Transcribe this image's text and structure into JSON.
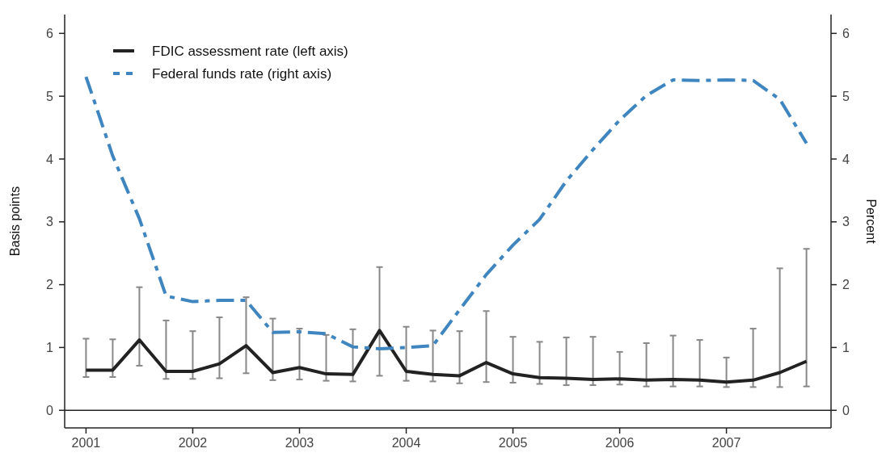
{
  "chart_data": {
    "type": "line",
    "ylabel": "Basis points",
    "y2label": "Percent",
    "x": [
      2001,
      2001.25,
      2001.5,
      2001.75,
      2002,
      2002.25,
      2002.5,
      2002.75,
      2003,
      2003.25,
      2003.5,
      2003.75,
      2004,
      2004.25,
      2004.5,
      2004.75,
      2005,
      2005.25,
      2005.5,
      2005.75,
      2006,
      2006.25,
      2006.5,
      2006.75,
      2007,
      2007.25,
      2007.5,
      2007.75
    ],
    "xlim": [
      2000.8,
      2007.98
    ],
    "xticks": [
      2001,
      2002,
      2003,
      2004,
      2005,
      2006,
      2007
    ],
    "ylim": [
      -0.28,
      6.3
    ],
    "yticks": [
      0,
      1,
      2,
      3,
      4,
      5,
      6
    ],
    "y2lim": [
      -0.28,
      6.3
    ],
    "y2ticks": [
      0,
      1,
      2,
      3,
      4,
      5,
      6
    ],
    "series": [
      {
        "name": "FDIC assessment rate (left axis)",
        "color": "#222222",
        "line_style": "solid",
        "values": [
          0.64,
          0.64,
          1.12,
          0.62,
          0.62,
          0.74,
          1.03,
          0.6,
          0.68,
          0.58,
          0.57,
          1.27,
          0.62,
          0.57,
          0.55,
          0.76,
          0.58,
          0.52,
          0.51,
          0.49,
          0.5,
          0.48,
          0.49,
          0.48,
          0.45,
          0.48,
          0.6,
          0.78
        ],
        "errors": [
          [
            0.53,
            1.14
          ],
          [
            0.53,
            1.13
          ],
          [
            0.71,
            1.96
          ],
          [
            0.5,
            1.43
          ],
          [
            0.5,
            1.26
          ],
          [
            0.51,
            1.48
          ],
          [
            0.59,
            1.8
          ],
          [
            0.48,
            1.46
          ],
          [
            0.49,
            1.3
          ],
          [
            0.47,
            1.2
          ],
          [
            0.46,
            1.29
          ],
          [
            0.55,
            2.28
          ],
          [
            0.47,
            1.33
          ],
          [
            0.46,
            1.27
          ],
          [
            0.43,
            1.26
          ],
          [
            0.45,
            1.58
          ],
          [
            0.44,
            1.17
          ],
          [
            0.42,
            1.09
          ],
          [
            0.4,
            1.16
          ],
          [
            0.4,
            1.17
          ],
          [
            0.41,
            0.93
          ],
          [
            0.38,
            1.07
          ],
          [
            0.38,
            1.19
          ],
          [
            0.38,
            1.12
          ],
          [
            0.37,
            0.84
          ],
          [
            0.37,
            1.3
          ],
          [
            0.37,
            2.26
          ],
          [
            0.38,
            2.57
          ]
        ]
      },
      {
        "name": "Federal funds rate (right axis)",
        "color": "#3f86c0",
        "line_style": "dashed",
        "axis": "y2",
        "values": [
          5.31,
          4.05,
          3.05,
          1.82,
          1.73,
          1.75,
          1.75,
          1.24,
          1.25,
          1.22,
          1.01,
          0.98,
          1.0,
          1.03,
          1.6,
          2.16,
          2.63,
          3.04,
          3.65,
          4.15,
          4.62,
          5.01,
          5.26,
          5.25,
          5.26,
          5.25,
          4.95,
          4.25
        ]
      }
    ],
    "ref_lines": [
      {
        "axis": "y",
        "value": 0,
        "color": "#222222"
      }
    ],
    "legend": "top left",
    "grid": false,
    "marker": "none"
  }
}
